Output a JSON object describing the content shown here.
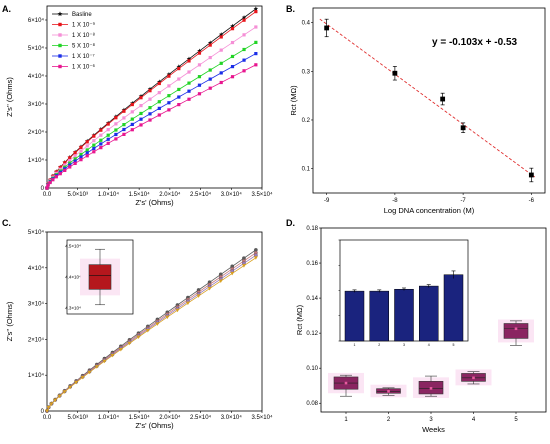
{
  "figure": {
    "panels": [
      {
        "label": "A."
      },
      {
        "label": "B."
      },
      {
        "label": "C."
      },
      {
        "label": "D."
      }
    ]
  },
  "chart_data": [
    {
      "panel": "A.",
      "type": "line",
      "xlabel": "Z's' (Ohms)",
      "ylabel": "Z's'' (Ohms)",
      "xlim": [
        0,
        35000
      ],
      "ylim": [
        0,
        65000
      ],
      "x_ticks": [
        "0.0",
        "5.0×10³",
        "1.0×10⁴",
        "1.5×10⁴",
        "2.0×10⁴",
        "2.5×10⁴",
        "3.0×10⁴",
        "3.5×10⁴"
      ],
      "y_ticks": [
        "0",
        "1×10⁴",
        "2×10⁴",
        "3×10⁴",
        "4×10⁴",
        "5×10⁴",
        "6×10⁴"
      ],
      "legend_position": "top-left",
      "series": [
        {
          "name": "Basline",
          "color": "#111111",
          "marker": "star",
          "end": [
            34000,
            64000
          ]
        },
        {
          "name": "1 X 10⁻⁹",
          "color": "#e8141b",
          "marker": "square",
          "end": [
            34000,
            63000
          ]
        },
        {
          "name": "1 X 10⁻⁸",
          "color": "#f58fd6",
          "marker": "square",
          "end": [
            34000,
            57500
          ]
        },
        {
          "name": "5 X 10⁻⁸",
          "color": "#22d426",
          "marker": "square",
          "end": [
            34000,
            52000
          ]
        },
        {
          "name": "1 X 10⁻⁷",
          "color": "#1b2ee8",
          "marker": "square",
          "end": [
            34000,
            48000
          ]
        },
        {
          "name": "1 X 10⁻⁶",
          "color": "#e8168f",
          "marker": "square",
          "end": [
            34000,
            44000
          ]
        }
      ]
    },
    {
      "panel": "B.",
      "type": "scatter",
      "xlabel": "Log DNA concentration (M)",
      "ylabel": "Rct (MΩ)",
      "xlim": [
        -9.2,
        -5.8
      ],
      "ylim": [
        0.05,
        0.43
      ],
      "x_ticks": [
        "-9",
        "-8",
        "-7",
        "-6"
      ],
      "y_ticks": [
        "0.1",
        "0.2",
        "0.3",
        "0.4"
      ],
      "equation": "y = -0.103x + -0.53",
      "points": [
        {
          "x": -9.0,
          "y": 0.389,
          "err": 0.018
        },
        {
          "x": -8.0,
          "y": 0.296,
          "err": 0.014
        },
        {
          "x": -7.3,
          "y": 0.243,
          "err": 0.012
        },
        {
          "x": -7.0,
          "y": 0.184,
          "err": 0.01
        },
        {
          "x": -6.0,
          "y": 0.087,
          "err": 0.014
        }
      ],
      "fit": {
        "slope": -0.103,
        "intercept": -0.53,
        "color": "#e03030"
      }
    },
    {
      "panel": "C.",
      "type": "line",
      "xlabel": "Z's' (Ohms)",
      "ylabel": "Z's'' (Ohms)",
      "xlim": [
        0,
        35000
      ],
      "ylim": [
        0,
        50000
      ],
      "x_ticks": [
        "0.0",
        "5.0×10³",
        "1.0×10⁴",
        "1.5×10⁴",
        "2.0×10⁴",
        "2.5×10⁴",
        "3.0×10⁴",
        "3.5×10⁴"
      ],
      "y_ticks": [
        "0",
        "1×10⁴",
        "2×10⁴",
        "3×10⁴",
        "4×10⁴",
        "5×10⁴"
      ],
      "series": [
        {
          "color": "#5a5a5a",
          "marker": "circle",
          "end": [
            34000,
            45000
          ]
        },
        {
          "color": "#c87878",
          "marker": "circle",
          "end": [
            34000,
            44200
          ]
        },
        {
          "color": "#9a7ab8",
          "marker": "circle",
          "end": [
            34000,
            43500
          ]
        },
        {
          "color": "#d8a020",
          "marker": "triangle",
          "end": [
            34000,
            42800
          ]
        }
      ],
      "inset": {
        "type": "box",
        "y_ticks": [
          "4.5×10⁴",
          "4.4×10⁴",
          "4.3×10⁴"
        ],
        "q1": 4.36,
        "median": 4.405,
        "q3": 4.44,
        "whisker_low": 4.31,
        "whisker_high": 4.49
      }
    },
    {
      "panel": "D.",
      "type": "box",
      "xlabel": "Weeks",
      "ylabel": "Rct (MΩ)",
      "ylim": [
        0.075,
        0.18
      ],
      "y_ticks": [
        "0.08",
        "0.10",
        "0.12",
        "0.14",
        "0.16",
        "0.18"
      ],
      "categories": [
        "1",
        "2",
        "3",
        "4",
        "5"
      ],
      "boxes": [
        {
          "q1": 0.088,
          "median": 0.0915,
          "q3": 0.095,
          "low": 0.084,
          "high": 0.096
        },
        {
          "q1": 0.0857,
          "median": 0.0868,
          "q3": 0.0883,
          "low": 0.0845,
          "high": 0.0888
        },
        {
          "q1": 0.0853,
          "median": 0.0885,
          "q3": 0.0925,
          "low": 0.084,
          "high": 0.0955
        },
        {
          "q1": 0.0925,
          "median": 0.0945,
          "q3": 0.097,
          "low": 0.091,
          "high": 0.098
        },
        {
          "q1": 0.117,
          "median": 0.1225,
          "q3": 0.1255,
          "low": 0.113,
          "high": 0.127
        }
      ],
      "inset": {
        "type": "bar",
        "y_ticks": [
          "0.10",
          "0.12",
          "0.14",
          "0.16",
          "0.18"
        ],
        "categories": [
          "1",
          "2",
          "3",
          "4",
          "5"
        ],
        "values": [
          0.1395,
          0.1395,
          0.141,
          0.1435,
          0.1525
        ],
        "errors": [
          0.001,
          0.001,
          0.001,
          0.0012,
          0.003
        ],
        "ylim": [
          0.1,
          0.18
        ],
        "color": "#1a237e"
      }
    }
  ]
}
